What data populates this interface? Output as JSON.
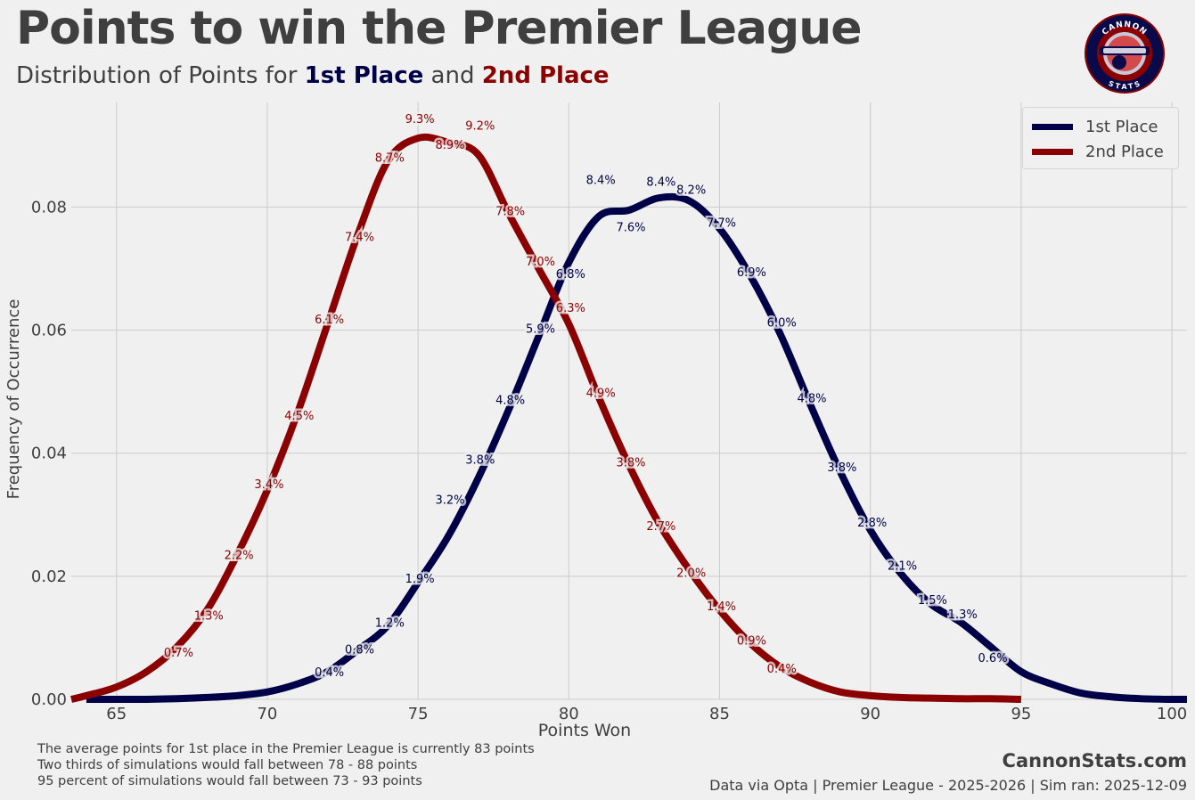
{
  "header": {
    "title": "Points to win the Premier League",
    "subtitle_prefix": "Distribution of Points for ",
    "subtitle_first": "1st Place",
    "subtitle_mid": " and ",
    "subtitle_second": "2nd Place"
  },
  "logo": {
    "top_text": "CANNON",
    "bottom_text": "STATS",
    "icon": "cannon-stats-logo-icon"
  },
  "colors": {
    "first": "#000048",
    "second": "#8b0000",
    "background": "#f0f0f0",
    "grid": "#cbcbcb",
    "text": "#3f3f3f"
  },
  "chart_data": {
    "type": "line",
    "title": "Points to win the Premier League",
    "xlabel": "Points Won",
    "ylabel": "Frequency of Occurrence",
    "xlim": [
      63.5,
      100.5
    ],
    "ylim": [
      0,
      0.097
    ],
    "xticks": [
      65,
      70,
      75,
      80,
      85,
      90,
      95,
      100
    ],
    "yticks": [
      "0.00",
      "0.02",
      "0.04",
      "0.06",
      "0.08"
    ],
    "ytick_values": [
      0,
      0.02,
      0.04,
      0.06,
      0.08
    ],
    "grid": true,
    "legend": "top-right",
    "series": [
      {
        "name": "1st Place",
        "color": "#000048",
        "x": [
          64,
          65,
          66,
          67,
          68,
          69,
          70,
          71,
          72,
          73,
          74,
          75,
          76,
          77,
          78,
          79,
          80,
          81,
          82,
          83,
          84,
          85,
          86,
          87,
          88,
          89,
          90,
          91,
          92,
          93,
          94,
          95,
          96,
          97,
          98,
          99,
          100,
          100.5
        ],
        "y": [
          0,
          0,
          0,
          0.0001,
          0.0003,
          0.0006,
          0.0012,
          0.0025,
          0.0045,
          0.008,
          0.012,
          0.019,
          0.0265,
          0.036,
          0.047,
          0.059,
          0.071,
          0.0785,
          0.0795,
          0.0815,
          0.081,
          0.0765,
          0.069,
          0.0595,
          0.048,
          0.037,
          0.0275,
          0.0205,
          0.0155,
          0.0125,
          0.0085,
          0.0045,
          0.0025,
          0.001,
          0.0004,
          0.0001,
          0,
          0
        ],
        "point_labels": [
          {
            "x": 72,
            "y": 0.0045,
            "text": "0.4%"
          },
          {
            "x": 73,
            "y": 0.0082,
            "text": "0.8%"
          },
          {
            "x": 74,
            "y": 0.0125,
            "text": "1.2%"
          },
          {
            "x": 75,
            "y": 0.0197,
            "text": "1.9%"
          },
          {
            "x": 76,
            "y": 0.0325,
            "text": "3.2%"
          },
          {
            "x": 77,
            "y": 0.039,
            "text": "3.8%"
          },
          {
            "x": 78,
            "y": 0.0487,
            "text": "4.8%"
          },
          {
            "x": 79,
            "y": 0.0603,
            "text": "5.9%"
          },
          {
            "x": 80,
            "y": 0.0692,
            "text": "6.8%"
          },
          {
            "x": 81,
            "y": 0.0845,
            "text": "8.4%"
          },
          {
            "x": 82,
            "y": 0.0768,
            "text": "7.6%"
          },
          {
            "x": 83,
            "y": 0.0842,
            "text": "8.4%"
          },
          {
            "x": 84,
            "y": 0.0829,
            "text": "8.2%"
          },
          {
            "x": 85,
            "y": 0.0775,
            "text": "7.7%"
          },
          {
            "x": 86,
            "y": 0.0695,
            "text": "6.9%"
          },
          {
            "x": 87,
            "y": 0.0613,
            "text": "6.0%"
          },
          {
            "x": 88,
            "y": 0.049,
            "text": "4.8%"
          },
          {
            "x": 89,
            "y": 0.0378,
            "text": "3.8%"
          },
          {
            "x": 90,
            "y": 0.0288,
            "text": "2.8%"
          },
          {
            "x": 91,
            "y": 0.0218,
            "text": "2.1%"
          },
          {
            "x": 92,
            "y": 0.0162,
            "text": "1.5%"
          },
          {
            "x": 93,
            "y": 0.0139,
            "text": "1.3%"
          },
          {
            "x": 94,
            "y": 0.0068,
            "text": "0.6%"
          }
        ]
      },
      {
        "name": "2nd Place",
        "color": "#8b0000",
        "x": [
          63.5,
          64,
          65,
          66,
          67,
          68,
          69,
          70,
          71,
          72,
          73,
          74,
          75,
          76,
          77,
          78,
          79,
          80,
          81,
          82,
          83,
          84,
          85,
          86,
          87,
          88,
          89,
          90,
          91,
          92,
          93,
          94,
          95
        ],
        "y": [
          0,
          0.0006,
          0.002,
          0.0045,
          0.0085,
          0.0145,
          0.0235,
          0.034,
          0.0465,
          0.061,
          0.0755,
          0.0875,
          0.0912,
          0.0905,
          0.0885,
          0.079,
          0.07,
          0.061,
          0.049,
          0.038,
          0.0285,
          0.021,
          0.0145,
          0.0092,
          0.0053,
          0.0028,
          0.0012,
          0.0006,
          0.0003,
          0.0002,
          0.0001,
          0.0001,
          0
        ],
        "point_labels": [
          {
            "x": 67,
            "y": 0.0077,
            "text": "0.7%"
          },
          {
            "x": 68,
            "y": 0.0137,
            "text": "1.3%"
          },
          {
            "x": 69,
            "y": 0.0235,
            "text": "2.2%"
          },
          {
            "x": 70,
            "y": 0.035,
            "text": "3.4%"
          },
          {
            "x": 71,
            "y": 0.0462,
            "text": "4.5%"
          },
          {
            "x": 72,
            "y": 0.0618,
            "text": "6.1%"
          },
          {
            "x": 73,
            "y": 0.0752,
            "text": "7.4%"
          },
          {
            "x": 74,
            "y": 0.0881,
            "text": "8.7%"
          },
          {
            "x": 75,
            "y": 0.0944,
            "text": "9.3%"
          },
          {
            "x": 76,
            "y": 0.0902,
            "text": "8.9%"
          },
          {
            "x": 77,
            "y": 0.0933,
            "text": "9.2%"
          },
          {
            "x": 78,
            "y": 0.0794,
            "text": "7.8%"
          },
          {
            "x": 79,
            "y": 0.0712,
            "text": "7.0%"
          },
          {
            "x": 80,
            "y": 0.0637,
            "text": "6.3%"
          },
          {
            "x": 81,
            "y": 0.0499,
            "text": "4.9%"
          },
          {
            "x": 82,
            "y": 0.0386,
            "text": "3.8%"
          },
          {
            "x": 83,
            "y": 0.0282,
            "text": "2.7%"
          },
          {
            "x": 84,
            "y": 0.0206,
            "text": "2.0%"
          },
          {
            "x": 85,
            "y": 0.0152,
            "text": "1.4%"
          },
          {
            "x": 86,
            "y": 0.0096,
            "text": "0.9%"
          },
          {
            "x": 87,
            "y": 0.0051,
            "text": "0.4%"
          }
        ]
      }
    ]
  },
  "notes": [
    "The average points for 1st place in the Premier League is currently 83 points",
    "Two thirds of simulations would fall between 78 - 88 points",
    "95 percent of simulations would fall between 73 - 93 points"
  ],
  "footer": {
    "brand": "CannonStats.com",
    "source": "Data via Opta | Premier League - 2025-2026 | Sim ran: 2025-12-09"
  }
}
